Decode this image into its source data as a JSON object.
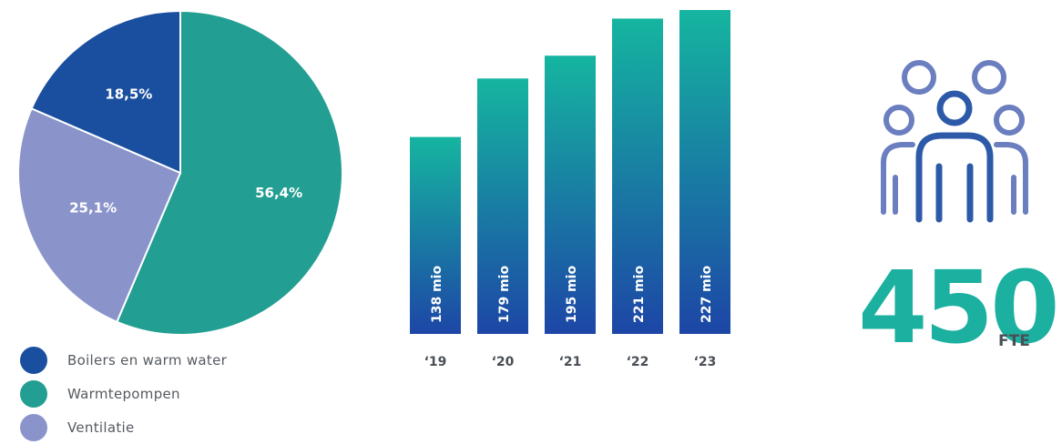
{
  "colors": {
    "boilers": "#1a4fa0",
    "warmtepompen": "#239e92",
    "ventilatie": "#8a94cb",
    "bar_top": "#15b5a0",
    "bar_bottom": "#1d46a6",
    "big_number": "#1bb0a0",
    "icon_front": "#2c5aa8",
    "icon_back": "#6a7ec0"
  },
  "chart_data": [
    {
      "type": "pie",
      "slices": [
        {
          "name": "Warmtepompen",
          "value": 56.4,
          "label": "56,4%",
          "color_key": "warmtepompen"
        },
        {
          "name": "Ventilatie",
          "value": 25.1,
          "label": "25,1%",
          "color_key": "ventilatie"
        },
        {
          "name": "Boilers en warm water",
          "value": 18.5,
          "label": "18,5%",
          "color_key": "boilers"
        }
      ],
      "legend": [
        {
          "label": "Boilers en warm water",
          "color_key": "boilers"
        },
        {
          "label": "Warmtepompen",
          "color_key": "warmtepompen"
        },
        {
          "label": "Ventilatie",
          "color_key": "ventilatie"
        }
      ],
      "legend_position": "bottom-left"
    },
    {
      "type": "bar",
      "categories": [
        "‘19",
        "‘20",
        "‘21",
        "‘22",
        "‘23"
      ],
      "values": [
        138,
        179,
        195,
        221,
        227
      ],
      "value_labels": [
        "138 mio",
        "179 mio",
        "195 mio",
        "221 mio",
        "227 mio"
      ],
      "ylim": [
        0,
        227
      ]
    }
  ],
  "fte": {
    "value": "450",
    "unit": "FTE",
    "icon": "people-group-icon"
  }
}
